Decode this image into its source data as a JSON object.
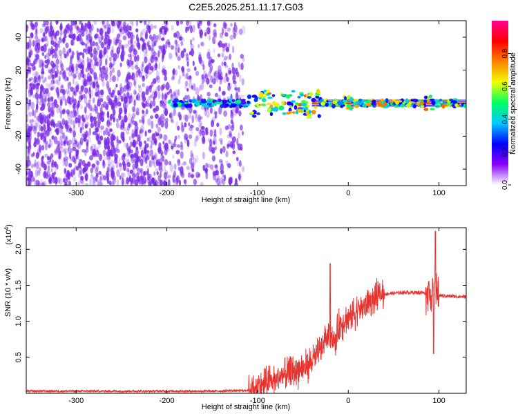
{
  "title": "C2E5.2025.251.11.17.G03",
  "colors": {
    "cloud": "#7a2be6",
    "trace": "#e8332f",
    "frame": "#000000"
  },
  "colorbar": {
    "label": "Normalized spectral amplitude",
    "ticks": [
      "0.0",
      "0.2",
      "0.4",
      "0.6",
      "0.8"
    ],
    "tick_values": [
      0.0,
      0.2,
      0.4,
      0.6,
      0.8
    ],
    "range": [
      0,
      1
    ],
    "colormap": [
      "#ffffff",
      "#8a00ff",
      "#0000ff",
      "#00c8ff",
      "#00ff60",
      "#f0ff00",
      "#ff8000",
      "#ff0000",
      "#ff0090"
    ]
  },
  "chart_data": [
    {
      "type": "heatmap",
      "title": "C2E5.2025.251.11.17.G03",
      "xlabel": "Height of straight line (km)",
      "ylabel": "Frequency (Hz)",
      "xlim": [
        -355,
        130
      ],
      "ylim": [
        -50,
        50
      ],
      "xticks": [
        -300,
        -200,
        -100,
        0,
        100
      ],
      "xtick_labels": [
        "-300",
        "-200",
        "-100",
        "0",
        "100"
      ],
      "yticks": [
        -40,
        -20,
        0,
        20,
        40
      ],
      "ytick_labels": [
        "-40",
        "-20",
        "0",
        "20",
        "40"
      ],
      "noise_region_x": [
        -355,
        -115
      ],
      "signal_band": {
        "x_start": -200,
        "x_end": 130,
        "center_freq": 0,
        "strong_from_x": -40
      }
    },
    {
      "type": "line",
      "xlabel": "Height of straight line (km)",
      "ylabel": "SNR (10 * v/v)",
      "y_multiplier": "(x10",
      "y_multiplier_exp": "4",
      "xlim": [
        -355,
        130
      ],
      "ylim": [
        0,
        2.3
      ],
      "xticks": [
        -300,
        -200,
        -100,
        0,
        100
      ],
      "xtick_labels": [
        "-300",
        "-200",
        "-100",
        "0",
        "100"
      ],
      "yticks": [
        0.5,
        1.0,
        1.5,
        2.0
      ],
      "ytick_labels": [
        "0.5",
        "1.0",
        "1.5",
        "2.0"
      ],
      "series": [
        {
          "x": [
            -355,
            -300,
            -250,
            -200,
            -150,
            -110,
            -100,
            -90,
            -80,
            -70,
            -60,
            -50,
            -40,
            -30,
            -25,
            -20,
            -15,
            -10,
            -5,
            0,
            10,
            20,
            30,
            40,
            60,
            80,
            90,
            95,
            100,
            110,
            130
          ],
          "y": [
            0.03,
            0.03,
            0.03,
            0.03,
            0.03,
            0.04,
            0.08,
            0.15,
            0.2,
            0.25,
            0.3,
            0.35,
            0.45,
            0.6,
            0.75,
            0.85,
            0.7,
            0.95,
            1.0,
            1.05,
            1.15,
            1.25,
            1.33,
            1.38,
            1.4,
            1.4,
            1.38,
            1.35,
            1.36,
            1.35,
            1.34
          ]
        }
      ],
      "spikes": [
        {
          "x": -20,
          "y": 1.8
        },
        {
          "x": 96,
          "y": 2.25
        },
        {
          "x": 94,
          "y": 0.55
        }
      ]
    }
  ]
}
